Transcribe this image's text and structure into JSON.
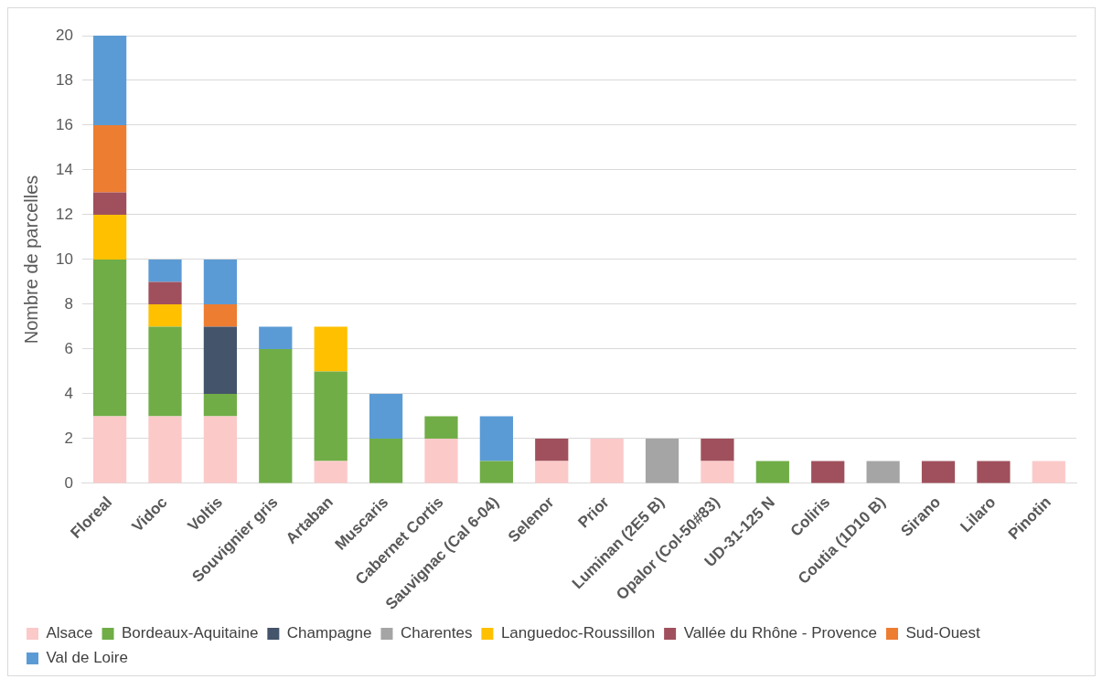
{
  "chart_data": {
    "type": "bar",
    "stacked": true,
    "ylabel": "Nombre de parcelles",
    "categories": [
      "Floreal",
      "Vidoc",
      "Voltis",
      "Souvignier gris",
      "Artaban",
      "Muscaris",
      "Cabernet Cortis",
      "Sauvignac (Cal 6-04)",
      "Selenor",
      "Prior",
      "Luminan (2E5 B)",
      "Opalor (Col-50#83)",
      "UD-31-125 N",
      "Coliris",
      "Coutia (1D10 B)",
      "Sirano",
      "Lilaro",
      "Pinotin"
    ],
    "series": [
      {
        "name": "Alsace",
        "color": "#fcc9c9",
        "values": [
          3,
          3,
          3,
          null,
          1,
          null,
          2,
          null,
          1,
          2,
          null,
          1,
          null,
          null,
          null,
          null,
          null,
          1
        ]
      },
      {
        "name": "Bordeaux-Aquitaine",
        "color": "#70ad47",
        "values": [
          7,
          4,
          1,
          6,
          4,
          2,
          1,
          1,
          null,
          null,
          null,
          null,
          1,
          null,
          null,
          null,
          null,
          null
        ]
      },
      {
        "name": "Champagne",
        "color": "#44546a",
        "values": [
          null,
          null,
          3,
          null,
          null,
          null,
          null,
          null,
          null,
          null,
          null,
          null,
          null,
          null,
          null,
          null,
          null,
          null
        ]
      },
      {
        "name": "Charentes",
        "color": "#a5a5a5",
        "values": [
          null,
          null,
          null,
          null,
          null,
          null,
          null,
          null,
          null,
          null,
          2,
          null,
          null,
          null,
          1,
          null,
          null,
          null
        ]
      },
      {
        "name": "Languedoc-Roussillon",
        "color": "#ffc000",
        "values": [
          2,
          1,
          null,
          null,
          2,
          null,
          null,
          null,
          null,
          null,
          null,
          null,
          null,
          null,
          null,
          null,
          null,
          null
        ]
      },
      {
        "name": "Vallée du Rhône - Provence",
        "color": "#a0505c",
        "values": [
          1,
          1,
          null,
          null,
          null,
          null,
          null,
          null,
          1,
          null,
          null,
          1,
          null,
          1,
          null,
          1,
          1,
          null
        ]
      },
      {
        "name": "Sud-Ouest",
        "color": "#ed7d31",
        "values": [
          3,
          null,
          1,
          null,
          null,
          null,
          null,
          null,
          null,
          null,
          null,
          null,
          null,
          null,
          null,
          null,
          null,
          null
        ]
      },
      {
        "name": "Val de Loire",
        "color": "#5b9bd5",
        "values": [
          4,
          1,
          2,
          1,
          null,
          2,
          null,
          2,
          null,
          null,
          null,
          null,
          null,
          null,
          null,
          null,
          null,
          null
        ]
      }
    ],
    "ylim": [
      0,
      20
    ],
    "yticks": [
      0,
      2,
      4,
      6,
      8,
      10,
      12,
      14,
      16,
      18,
      20
    ],
    "grid": "y",
    "legend": "bottom"
  }
}
